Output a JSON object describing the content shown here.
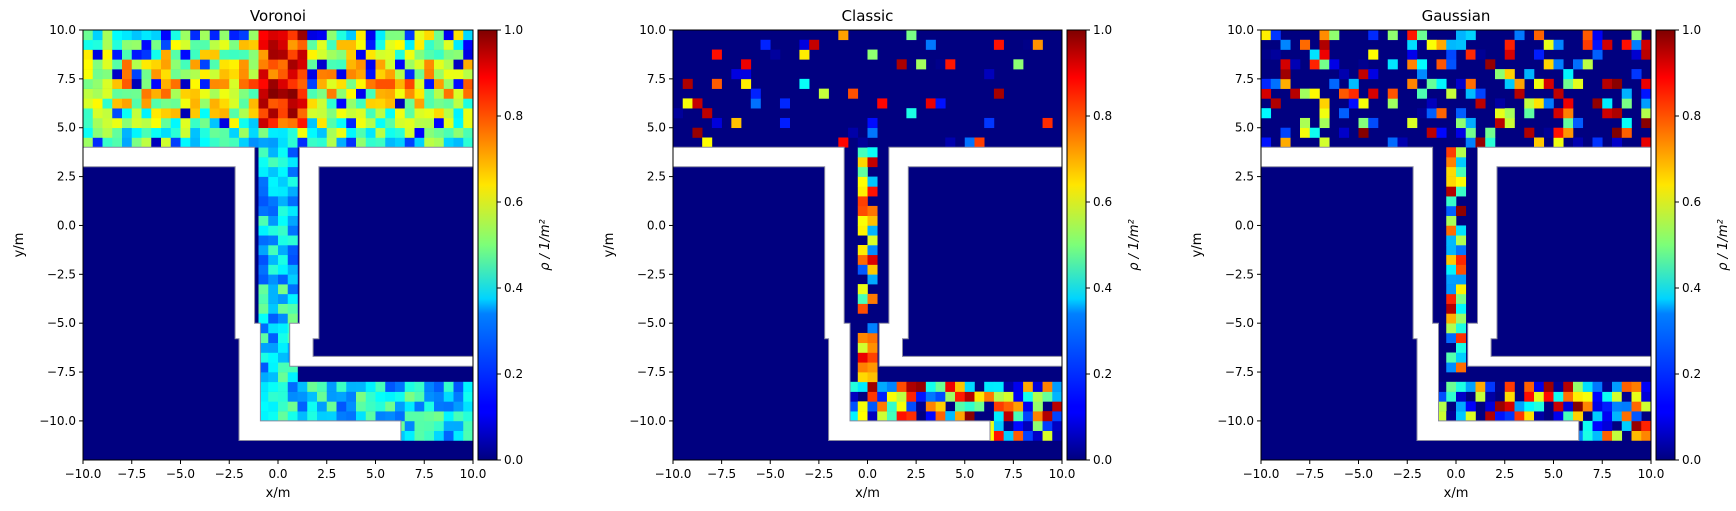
{
  "chart_data": [
    {
      "type": "heatmap",
      "title": "Voronoi",
      "xlabel": "x/m",
      "ylabel": "y/m",
      "xlim": [
        -10,
        10
      ],
      "ylim": [
        -12,
        10
      ],
      "xticks": [
        "−10.0",
        "−7.5",
        "−5.0",
        "−2.5",
        "0.0",
        "2.5",
        "5.0",
        "7.5",
        "10.0"
      ],
      "yticks": [
        "−10.0",
        "−7.5",
        "−5.0",
        "−2.5",
        "0.0",
        "2.5",
        "5.0",
        "7.5",
        "10.0"
      ],
      "colorbar": {
        "label": "ρ / 1/m²",
        "range": [
          0,
          1
        ],
        "ticks": [
          "0.0",
          "0.2",
          "0.4",
          "0.6",
          "0.8",
          "1.0"
        ],
        "colormap": "jet"
      },
      "grid": false,
      "density_regions": [
        {
          "region": "upper area x∈[-10,10], y∈[4,10]",
          "typical_density": 0.6,
          "range": [
            0.1,
            1.0
          ]
        },
        {
          "region": "vertical corridor x∈[-1,1], y∈[-8,4]",
          "typical_density": 0.35,
          "range": [
            0.2,
            0.6
          ]
        },
        {
          "region": "lower corridor x∈[0,10], y∈[-11,-8]",
          "typical_density": 0.35,
          "range": [
            0.2,
            0.6
          ]
        }
      ]
    },
    {
      "type": "heatmap",
      "title": "Classic",
      "xlabel": "x/m",
      "ylabel": "y/m",
      "xlim": [
        -10,
        10
      ],
      "ylim": [
        -12,
        10
      ],
      "xticks": [
        "−10.0",
        "−7.5",
        "−5.0",
        "−2.5",
        "0.0",
        "2.5",
        "5.0",
        "7.5",
        "10.0"
      ],
      "yticks": [
        "−10.0",
        "−7.5",
        "−5.0",
        "−2.5",
        "0.0",
        "2.5",
        "5.0",
        "7.5",
        "10.0"
      ],
      "colorbar": {
        "label": "ρ / 1/m²",
        "range": [
          0,
          1
        ],
        "ticks": [
          "0.0",
          "0.2",
          "0.4",
          "0.6",
          "0.8",
          "1.0"
        ],
        "colormap": "jet"
      },
      "grid": false,
      "density_regions": [
        {
          "region": "upper area x∈[-10,10], y∈[4,10]",
          "typical_density": 0.1,
          "range": [
            0.0,
            1.0
          ]
        },
        {
          "region": "vertical corridor x∈[-1,1], y∈[-8,4]",
          "typical_density": 0.6,
          "range": [
            0.2,
            1.0
          ]
        },
        {
          "region": "lower corridor x∈[0,10], y∈[-11,-8]",
          "typical_density": 0.5,
          "range": [
            0.0,
            1.0
          ]
        }
      ]
    },
    {
      "type": "heatmap",
      "title": "Gaussian",
      "xlabel": "x/m",
      "ylabel": "y/m",
      "xlim": [
        -10,
        10
      ],
      "ylim": [
        -12,
        10
      ],
      "xticks": [
        "−10.0",
        "−7.5",
        "−5.0",
        "−2.5",
        "0.0",
        "2.5",
        "5.0",
        "7.5",
        "10.0"
      ],
      "yticks": [
        "−10.0",
        "−7.5",
        "−5.0",
        "−2.5",
        "0.0",
        "2.5",
        "5.0",
        "7.5",
        "10.0"
      ],
      "colorbar": {
        "label": "ρ / 1/m²",
        "range": [
          0,
          1
        ],
        "ticks": [
          "0.0",
          "0.2",
          "0.4",
          "0.6",
          "0.8",
          "1.0"
        ],
        "colormap": "jet"
      },
      "grid": false,
      "density_regions": [
        {
          "region": "upper area x∈[-10,10], y∈[4,10]",
          "typical_density": 0.3,
          "range": [
            0.0,
            1.0
          ]
        },
        {
          "region": "vertical corridor x∈[-1,1], y∈[-8,4]",
          "typical_density": 0.55,
          "range": [
            0.2,
            1.0
          ]
        },
        {
          "region": "lower corridor x∈[0,10], y∈[-11,-8]",
          "typical_density": 0.45,
          "range": [
            0.0,
            1.0
          ]
        }
      ]
    }
  ]
}
